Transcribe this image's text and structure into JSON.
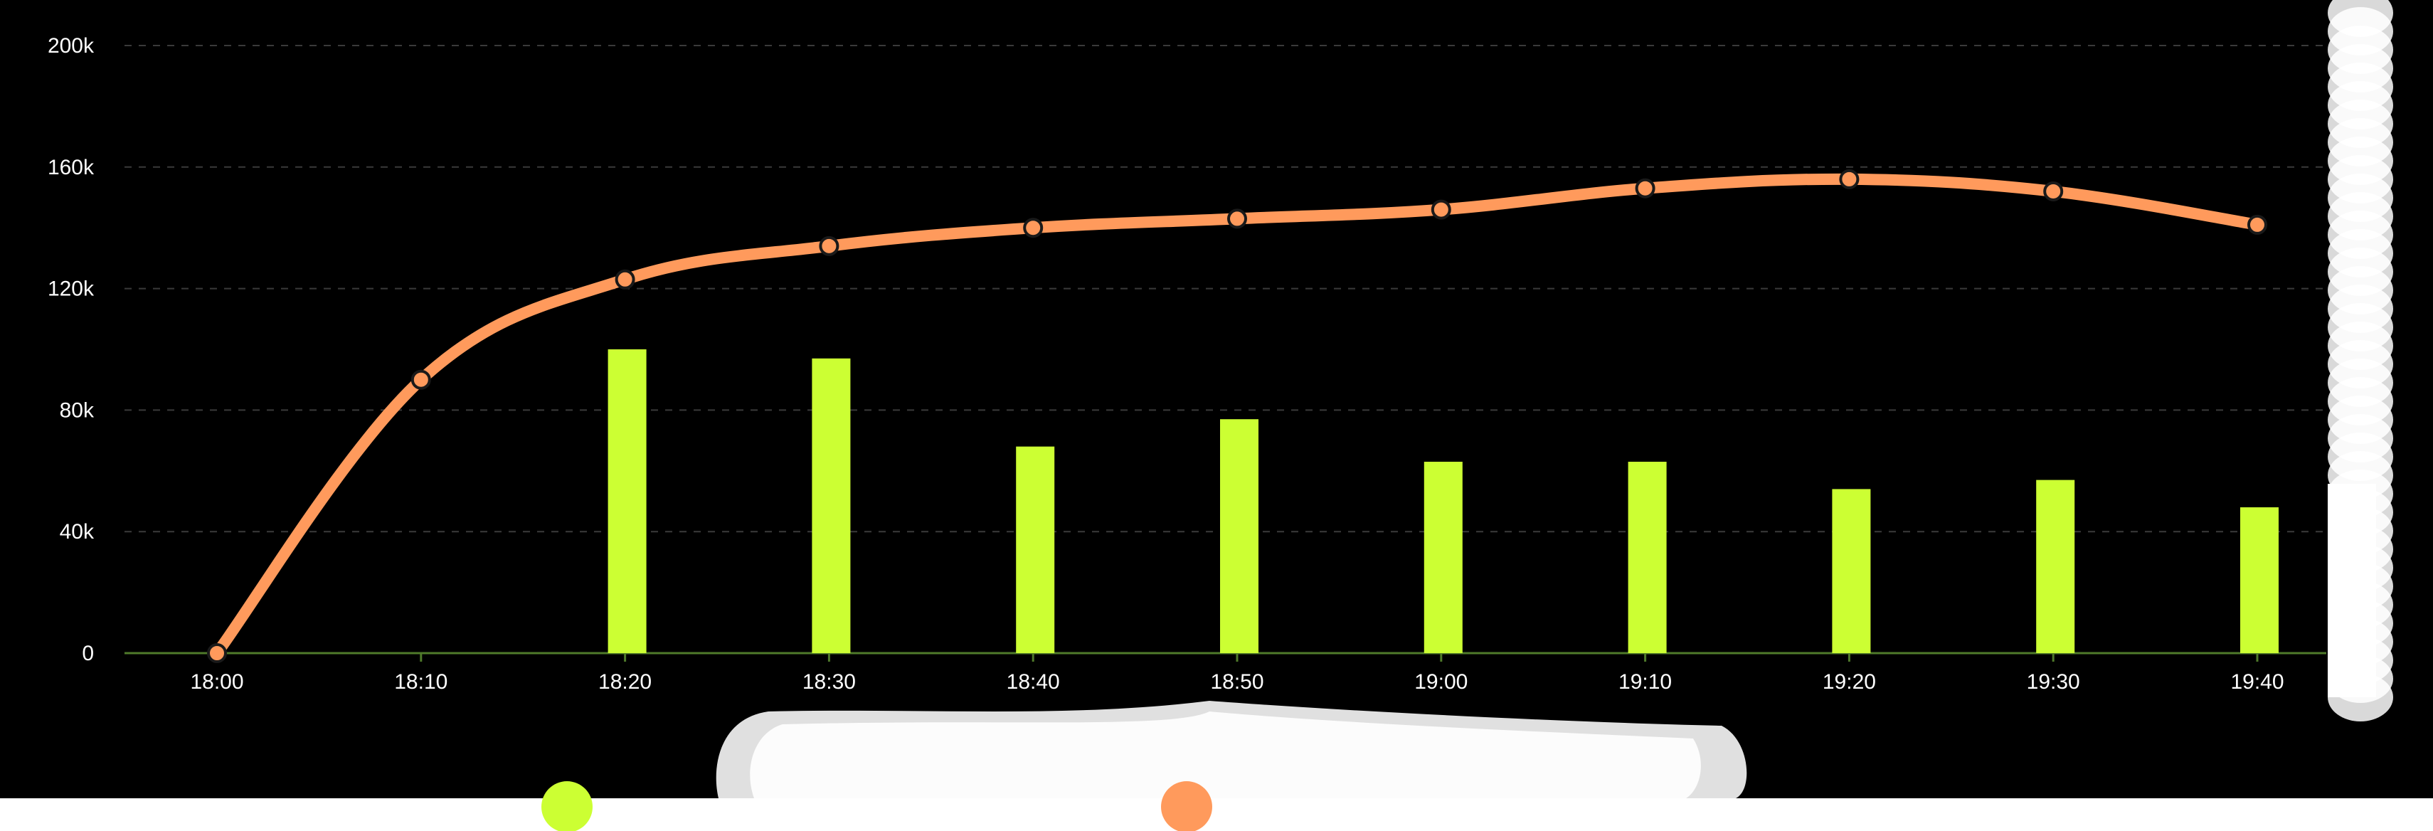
{
  "chart_data": {
    "type": "bar",
    "title": "",
    "xlabel": "",
    "ylabel": "",
    "categories": [
      "18:00",
      "18:10",
      "18:20",
      "18:30",
      "18:40",
      "18:50",
      "19:00",
      "19:10",
      "19:20",
      "19:30",
      "19:40"
    ],
    "ylim": [
      0,
      200000
    ],
    "yticks": [
      "0",
      "40k",
      "80k",
      "120k",
      "160k",
      "200k"
    ],
    "ytick_values": [
      0,
      40000,
      80000,
      120000,
      160000,
      200000
    ],
    "grid": true,
    "series": [
      {
        "type": "bar",
        "color": "#CCFF33",
        "values": [
          null,
          null,
          100000,
          97000,
          68000,
          77000,
          63000,
          63000,
          54000,
          57000,
          48000
        ]
      },
      {
        "type": "line",
        "color": "#FF9A5C",
        "values": [
          0,
          90000,
          123000,
          134000,
          140000,
          143000,
          146000,
          153000,
          156000,
          152000,
          141000
        ]
      }
    ],
    "legend": {
      "position": "bottom",
      "items": [
        {
          "color": "#CCFF33",
          "marker": "circle"
        },
        {
          "color": "#FF9A5C",
          "marker": "circle"
        }
      ]
    }
  },
  "colors": {
    "background": "#000000",
    "grid": "#3a3a3a",
    "axis": "#4f7a2a",
    "bar": "#CCFF33",
    "line": "#FF9A5C"
  }
}
